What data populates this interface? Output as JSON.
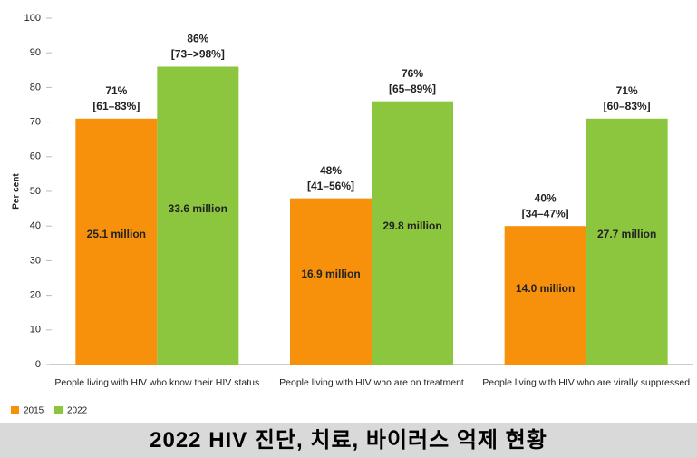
{
  "chart_data": {
    "type": "bar",
    "title": "2022 HIV 진단, 치료, 바이러스 억제 현황",
    "y_label": "Per cent",
    "categories": [
      "People living with HIV who know their HIV status",
      "People living with HIV who are on treatment",
      "People living with HIV who are virally suppressed"
    ],
    "series": [
      {
        "name": "2015",
        "color": "#f7900a",
        "values": [
          71,
          48,
          40
        ],
        "value_labels": [
          "71%",
          "48%",
          "40%"
        ],
        "ranges": [
          "[61–83%]",
          "[41–56%]",
          "[34–47%]"
        ],
        "counts": [
          "25.1 million",
          "16.9 million",
          "14.0 million"
        ]
      },
      {
        "name": "2022",
        "color": "#8cc63f",
        "values": [
          86,
          76,
          71
        ],
        "value_labels": [
          "86%",
          "76%",
          "71%"
        ],
        "ranges": [
          "[73–>98%]",
          "[65–89%]",
          "[60–83%]"
        ],
        "counts": [
          "33.6 million",
          "29.8 million",
          "27.7 million"
        ]
      }
    ],
    "ylim": [
      0,
      100
    ],
    "yticks": [
      0,
      10,
      20,
      30,
      40,
      50,
      60,
      70,
      80,
      90,
      100
    ]
  }
}
